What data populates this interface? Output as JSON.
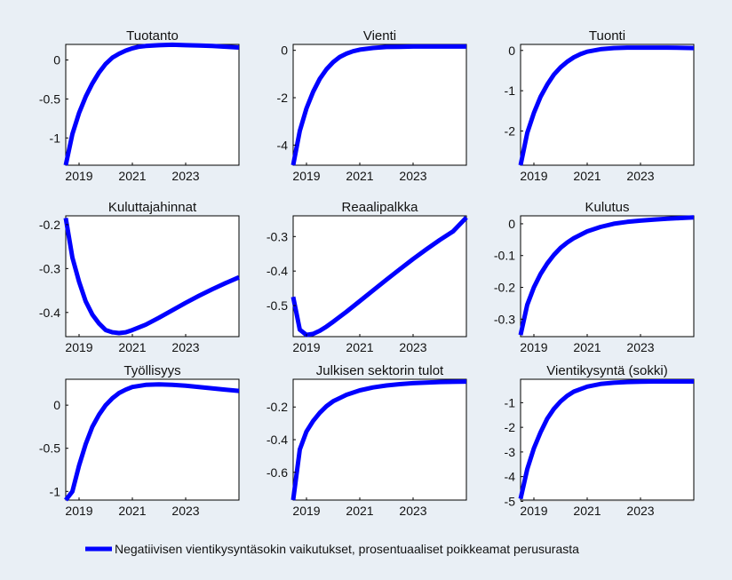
{
  "colors": {
    "background": "#e9eff5",
    "axes_background": "#ffffff",
    "series": "#0000ff",
    "zero_line": "#000000",
    "grid": "#dcdcdc"
  },
  "legend": {
    "label": "Negatiivisen vientikysyntäsokin vaikutukset, prosentuaaliset poikkeamat perusurasta",
    "placement": "bottom-center"
  },
  "chart_data": [
    {
      "type": "line",
      "title": "Tuotanto",
      "grid": true,
      "xlim": [
        2018.5,
        2025
      ],
      "ylim": [
        -1.35,
        0.2
      ],
      "xticks": [
        2019,
        2021,
        2023
      ],
      "yticks": [
        -1,
        -0.5,
        0
      ],
      "xticklabels": [
        "2019",
        "2021",
        "2023"
      ],
      "yticklabels": [
        "-1",
        "-0.5",
        "0"
      ],
      "zero_line": true,
      "x": [
        2018.5,
        2018.75,
        2019,
        2019.25,
        2019.5,
        2019.75,
        2020,
        2020.25,
        2020.5,
        2020.75,
        2021,
        2021.25,
        2021.5,
        2022,
        2022.5,
        2023,
        2023.5,
        2024,
        2024.5,
        2025
      ],
      "values": [
        -1.35,
        -0.95,
        -0.68,
        -0.47,
        -0.3,
        -0.16,
        -0.05,
        0.03,
        0.08,
        0.12,
        0.15,
        0.17,
        0.18,
        0.19,
        0.195,
        0.19,
        0.185,
        0.18,
        0.17,
        0.16
      ]
    },
    {
      "type": "line",
      "title": "Vienti",
      "grid": true,
      "xlim": [
        2018.5,
        2025
      ],
      "ylim": [
        -4.85,
        0.25
      ],
      "xticks": [
        2019,
        2021,
        2023
      ],
      "yticks": [
        -4,
        -2,
        0
      ],
      "xticklabels": [
        "2019",
        "2021",
        "2023"
      ],
      "yticklabels": [
        "-4",
        "-2",
        "0"
      ],
      "zero_line": true,
      "x": [
        2018.5,
        2018.75,
        2019,
        2019.25,
        2019.5,
        2019.75,
        2020,
        2020.25,
        2020.5,
        2020.75,
        2021,
        2021.5,
        2022,
        2022.5,
        2023,
        2023.5,
        2024,
        2025
      ],
      "values": [
        -4.85,
        -3.4,
        -2.45,
        -1.75,
        -1.2,
        -0.8,
        -0.5,
        -0.28,
        -0.14,
        -0.04,
        0.03,
        0.1,
        0.14,
        0.15,
        0.16,
        0.16,
        0.16,
        0.16
      ]
    },
    {
      "type": "line",
      "title": "Tuonti",
      "grid": true,
      "xlim": [
        2018.5,
        2025
      ],
      "ylim": [
        -2.85,
        0.15
      ],
      "xticks": [
        2019,
        2021,
        2023
      ],
      "yticks": [
        -2,
        -1,
        0
      ],
      "xticklabels": [
        "2019",
        "2021",
        "2023"
      ],
      "yticklabels": [
        "-2",
        "-1",
        "0"
      ],
      "zero_line": true,
      "x": [
        2018.5,
        2018.75,
        2019,
        2019.25,
        2019.5,
        2019.75,
        2020,
        2020.25,
        2020.5,
        2020.75,
        2021,
        2021.5,
        2022,
        2022.5,
        2023,
        2023.5,
        2024,
        2025
      ],
      "values": [
        -2.85,
        -2.05,
        -1.55,
        -1.15,
        -0.85,
        -0.6,
        -0.42,
        -0.28,
        -0.17,
        -0.09,
        -0.03,
        0.03,
        0.06,
        0.07,
        0.07,
        0.07,
        0.07,
        0.06
      ]
    },
    {
      "type": "line",
      "title": "Kuluttajahinnat",
      "grid": true,
      "xlim": [
        2018.5,
        2025
      ],
      "ylim": [
        -0.455,
        -0.18
      ],
      "xticks": [
        2019,
        2021,
        2023
      ],
      "yticks": [
        -0.4,
        -0.3,
        -0.2
      ],
      "xticklabels": [
        "2019",
        "2021",
        "2023"
      ],
      "yticklabels": [
        "-0.4",
        "-0.3",
        "-0.2"
      ],
      "zero_line": false,
      "x": [
        2018.5,
        2018.75,
        2019,
        2019.25,
        2019.5,
        2019.75,
        2020,
        2020.25,
        2020.5,
        2020.75,
        2021,
        2021.5,
        2022,
        2022.5,
        2023,
        2023.5,
        2024,
        2024.5,
        2025
      ],
      "values": [
        -0.185,
        -0.275,
        -0.33,
        -0.375,
        -0.405,
        -0.425,
        -0.44,
        -0.445,
        -0.447,
        -0.445,
        -0.44,
        -0.428,
        -0.412,
        -0.395,
        -0.378,
        -0.362,
        -0.347,
        -0.333,
        -0.32
      ]
    },
    {
      "type": "line",
      "title": "Reaalipalkka",
      "grid": true,
      "xlim": [
        2018.5,
        2025
      ],
      "ylim": [
        -0.59,
        -0.24
      ],
      "xticks": [
        2019,
        2021,
        2023
      ],
      "yticks": [
        -0.5,
        -0.4,
        -0.3
      ],
      "xticklabels": [
        "2019",
        "2021",
        "2023"
      ],
      "yticklabels": [
        "-0.5",
        "-0.4",
        "-0.3"
      ],
      "zero_line": false,
      "x": [
        2018.5,
        2018.75,
        2019,
        2019.25,
        2019.5,
        2019.75,
        2020,
        2020.5,
        2021,
        2021.5,
        2022,
        2022.5,
        2023,
        2023.5,
        2024,
        2024.5,
        2025
      ],
      "values": [
        -0.475,
        -0.57,
        -0.585,
        -0.582,
        -0.573,
        -0.561,
        -0.547,
        -0.518,
        -0.487,
        -0.456,
        -0.425,
        -0.395,
        -0.365,
        -0.337,
        -0.31,
        -0.285,
        -0.245
      ]
    },
    {
      "type": "line",
      "title": "Kulutus",
      "grid": true,
      "xlim": [
        2018.5,
        2025
      ],
      "ylim": [
        -0.355,
        0.025
      ],
      "xticks": [
        2019,
        2021,
        2023
      ],
      "yticks": [
        -0.3,
        -0.2,
        -0.1,
        0
      ],
      "xticklabels": [
        "2019",
        "2021",
        "2023"
      ],
      "yticklabels": [
        "-0.3",
        "-0.2",
        "-0.1",
        "0"
      ],
      "zero_line": true,
      "x": [
        2018.5,
        2018.75,
        2019,
        2019.25,
        2019.5,
        2019.75,
        2020,
        2020.25,
        2020.5,
        2021,
        2021.5,
        2022,
        2022.5,
        2023,
        2023.5,
        2024,
        2024.5,
        2025
      ],
      "values": [
        -0.35,
        -0.255,
        -0.2,
        -0.158,
        -0.125,
        -0.098,
        -0.076,
        -0.059,
        -0.045,
        -0.024,
        -0.01,
        0.0,
        0.006,
        0.01,
        0.013,
        0.016,
        0.018,
        0.02
      ]
    },
    {
      "type": "line",
      "title": "Työllisyys",
      "grid": true,
      "xlim": [
        2018.5,
        2025
      ],
      "ylim": [
        -1.1,
        0.3
      ],
      "xticks": [
        2019,
        2021,
        2023
      ],
      "yticks": [
        -1,
        -0.5,
        0
      ],
      "xticklabels": [
        "2019",
        "2021",
        "2023"
      ],
      "yticklabels": [
        "-1",
        "-0.5",
        "0"
      ],
      "zero_line": true,
      "x": [
        2018.5,
        2018.75,
        2019,
        2019.25,
        2019.5,
        2019.75,
        2020,
        2020.25,
        2020.5,
        2020.75,
        2021,
        2021.5,
        2022,
        2022.5,
        2023,
        2023.5,
        2024,
        2024.5,
        2025
      ],
      "values": [
        -1.1,
        -1.0,
        -0.7,
        -0.45,
        -0.25,
        -0.11,
        0.0,
        0.08,
        0.14,
        0.18,
        0.21,
        0.235,
        0.24,
        0.235,
        0.225,
        0.21,
        0.195,
        0.18,
        0.165
      ]
    },
    {
      "type": "line",
      "title": "Julkisen sektorin tulot",
      "grid": true,
      "xlim": [
        2018.5,
        2025
      ],
      "ylim": [
        -0.77,
        -0.03
      ],
      "xticks": [
        2019,
        2021,
        2023
      ],
      "yticks": [
        -0.6,
        -0.4,
        -0.2
      ],
      "xticklabels": [
        "2019",
        "2021",
        "2023"
      ],
      "yticklabels": [
        "-0.6",
        "-0.4",
        "-0.2"
      ],
      "zero_line": false,
      "x": [
        2018.5,
        2018.75,
        2019,
        2019.25,
        2019.5,
        2019.75,
        2020,
        2020.5,
        2021,
        2021.5,
        2022,
        2022.5,
        2023,
        2023.5,
        2024,
        2025
      ],
      "values": [
        -0.77,
        -0.46,
        -0.35,
        -0.285,
        -0.235,
        -0.195,
        -0.165,
        -0.125,
        -0.098,
        -0.08,
        -0.068,
        -0.06,
        -0.054,
        -0.05,
        -0.047,
        -0.044
      ]
    },
    {
      "type": "line",
      "title": "Vientikysyntä (sokki)",
      "grid": true,
      "xlim": [
        2018.5,
        2025
      ],
      "ylim": [
        -4.95,
        -0.05
      ],
      "xticks": [
        2019,
        2021,
        2023
      ],
      "yticks": [
        -5,
        -4,
        -3,
        -2,
        -1
      ],
      "xticklabels": [
        "2019",
        "2021",
        "2023"
      ],
      "yticklabels": [
        "-5",
        "-4",
        "-3",
        "-2",
        "-1"
      ],
      "zero_line": false,
      "x": [
        2018.5,
        2018.75,
        2019,
        2019.25,
        2019.5,
        2019.75,
        2020,
        2020.25,
        2020.5,
        2021,
        2021.5,
        2022,
        2022.5,
        2023,
        2023.5,
        2024,
        2025
      ],
      "values": [
        -4.9,
        -3.7,
        -2.85,
        -2.2,
        -1.65,
        -1.25,
        -0.95,
        -0.72,
        -0.55,
        -0.35,
        -0.24,
        -0.19,
        -0.16,
        -0.15,
        -0.14,
        -0.14,
        -0.14
      ]
    }
  ]
}
